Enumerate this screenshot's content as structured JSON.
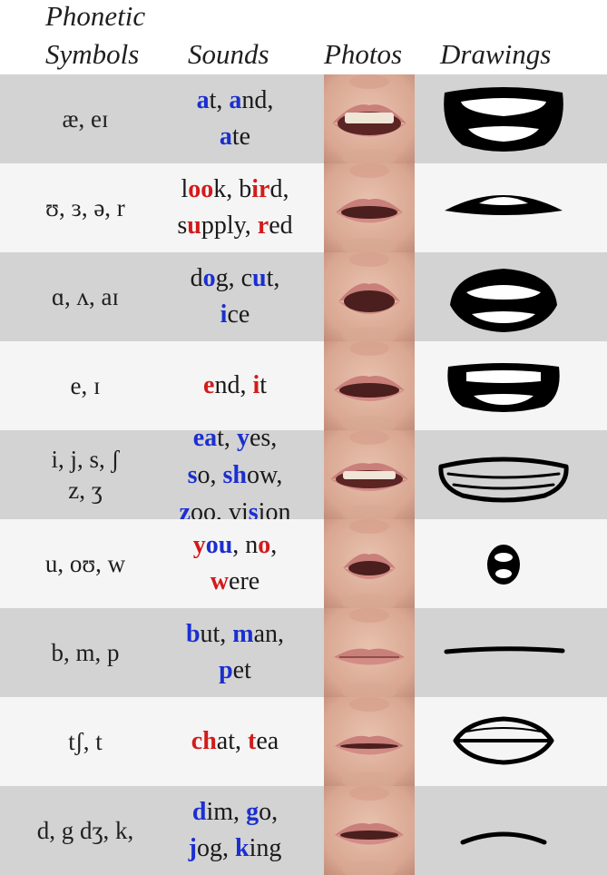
{
  "header": {
    "symbols_line1": "Phonetic",
    "symbols_line2": "Symbols",
    "sounds": "Sounds",
    "photos": "Photos",
    "drawings": "Drawings"
  },
  "colors": {
    "highlight_blue": "#1b2fd0",
    "highlight_red": "#d21b1b",
    "row_shade": "#d3d3d3"
  },
  "rows": [
    {
      "symbols": [
        "æ, eɪ"
      ],
      "sounds": [
        [
          {
            "t": "a",
            "c": "blue"
          },
          {
            "t": "t, "
          },
          {
            "t": "a",
            "c": "blue"
          },
          {
            "t": "nd,"
          }
        ],
        [
          {
            "t": "a",
            "c": "blue"
          },
          {
            "t": "te"
          }
        ]
      ],
      "photo_icon": "open-smile-mouth",
      "drawing_icon": "wide-open-mouth-icon"
    },
    {
      "symbols": [
        "ʊ, ɜ, ə, r"
      ],
      "sounds": [
        [
          {
            "t": "l"
          },
          {
            "t": "oo",
            "c": "red"
          },
          {
            "t": "k, b"
          },
          {
            "t": "ir",
            "c": "red"
          },
          {
            "t": "d,"
          }
        ],
        [
          {
            "t": "s"
          },
          {
            "t": "u",
            "c": "red"
          },
          {
            "t": "pply, "
          },
          {
            "t": "r",
            "c": "red"
          },
          {
            "t": "ed"
          }
        ]
      ],
      "photo_icon": "slightly-open-mouth",
      "drawing_icon": "slit-open-mouth-icon"
    },
    {
      "symbols": [
        "ɑ, ʌ, aɪ"
      ],
      "sounds": [
        [
          {
            "t": "d"
          },
          {
            "t": "o",
            "c": "blue"
          },
          {
            "t": "g, c"
          },
          {
            "t": "u",
            "c": "blue"
          },
          {
            "t": "t,"
          }
        ],
        [
          {
            "t": "i",
            "c": "blue"
          },
          {
            "t": "ce"
          }
        ]
      ],
      "photo_icon": "open-oval-mouth",
      "drawing_icon": "oval-open-mouth-icon"
    },
    {
      "symbols": [
        "e, ɪ"
      ],
      "sounds": [
        [
          {
            "t": "e",
            "c": "red"
          },
          {
            "t": "nd, "
          },
          {
            "t": "i",
            "c": "red"
          },
          {
            "t": "t"
          }
        ]
      ],
      "photo_icon": "mid-open-mouth",
      "drawing_icon": "rect-open-mouth-icon"
    },
    {
      "symbols": [
        "i, j, s, ʃ",
        "z, ʒ"
      ],
      "sounds": [
        [
          {
            "t": "ea",
            "c": "blue"
          },
          {
            "t": "t, "
          },
          {
            "t": "y",
            "c": "blue"
          },
          {
            "t": "es,"
          }
        ],
        [
          {
            "t": "s",
            "c": "blue"
          },
          {
            "t": "o, "
          },
          {
            "t": "sh",
            "c": "blue"
          },
          {
            "t": "ow,"
          }
        ],
        [
          {
            "t": "z",
            "c": "blue"
          },
          {
            "t": "oo, vi"
          },
          {
            "t": "s",
            "c": "blue"
          },
          {
            "t": "ion"
          }
        ]
      ],
      "photo_icon": "teeth-smile-mouth",
      "drawing_icon": "wide-smile-mouth-icon"
    },
    {
      "symbols": [
        "u, oʊ, w"
      ],
      "sounds": [
        [
          {
            "t": "y",
            "c": "red"
          },
          {
            "t": "ou",
            "c": "blue"
          },
          {
            "t": ", n"
          },
          {
            "t": "o",
            "c": "red"
          },
          {
            "t": ","
          }
        ],
        [
          {
            "t": "w",
            "c": "red"
          },
          {
            "t": "ere"
          }
        ]
      ],
      "photo_icon": "rounded-pucker-mouth",
      "drawing_icon": "round-pucker-mouth-icon"
    },
    {
      "symbols": [
        "b, m, p"
      ],
      "sounds": [
        [
          {
            "t": "b",
            "c": "blue"
          },
          {
            "t": "ut, "
          },
          {
            "t": "m",
            "c": "blue"
          },
          {
            "t": "an,"
          }
        ],
        [
          {
            "t": "p",
            "c": "blue"
          },
          {
            "t": "et"
          }
        ]
      ],
      "photo_icon": "closed-lips-mouth",
      "drawing_icon": "closed-line-mouth-icon"
    },
    {
      "symbols": [
        "tʃ, t"
      ],
      "sounds": [
        [
          {
            "t": "ch",
            "c": "red"
          },
          {
            "t": "at, "
          },
          {
            "t": "t",
            "c": "red"
          },
          {
            "t": "ea"
          }
        ]
      ],
      "photo_icon": "lips-parted-mouth",
      "drawing_icon": "small-open-mouth-icon"
    },
    {
      "symbols": [
        "d, g dʒ, k,"
      ],
      "sounds": [
        [
          {
            "t": "d",
            "c": "blue"
          },
          {
            "t": "im, "
          },
          {
            "t": "g",
            "c": "blue"
          },
          {
            "t": "o,"
          }
        ],
        [
          {
            "t": "j",
            "c": "blue"
          },
          {
            "t": "og, "
          },
          {
            "t": "k",
            "c": "blue"
          },
          {
            "t": "ing"
          }
        ]
      ],
      "photo_icon": "partly-open-mouth",
      "drawing_icon": "partial-mouth-icon"
    }
  ]
}
